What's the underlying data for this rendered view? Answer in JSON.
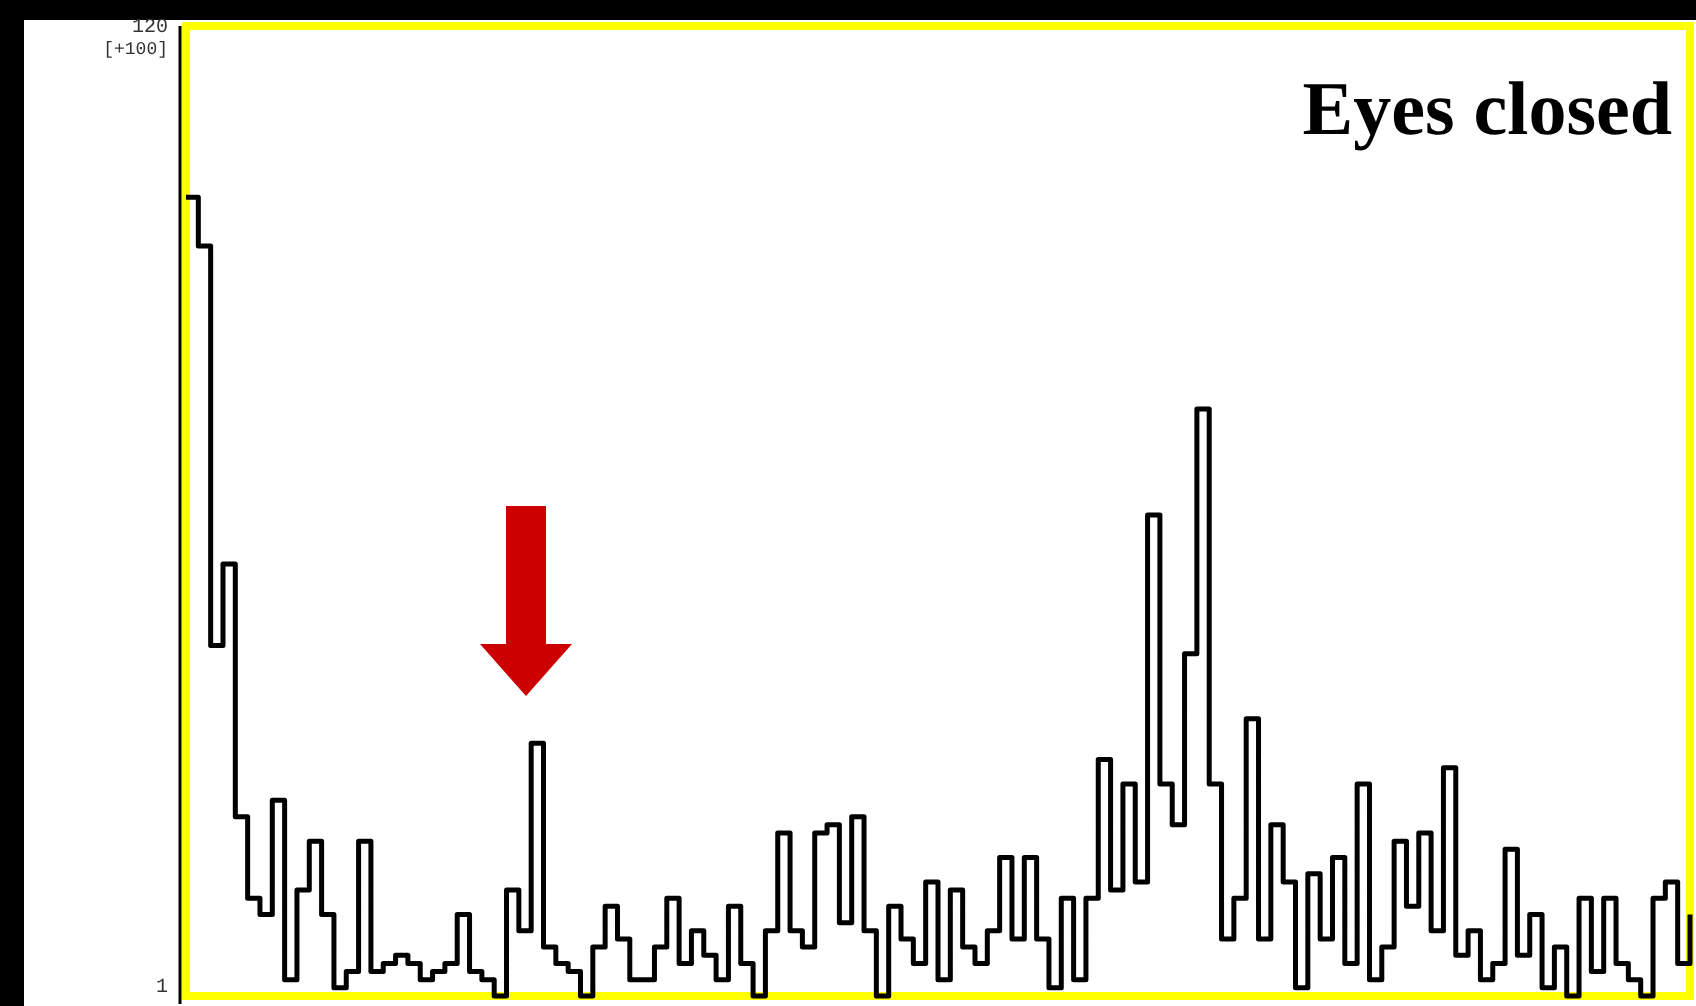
{
  "chart_data": {
    "type": "step",
    "title": "Eyes closed",
    "annotations": [
      "[+100]"
    ],
    "ylim": [
      1,
      120
    ],
    "yticks": [
      120,
      1
    ],
    "grid": false,
    "line_style": "solid",
    "categories": [
      null,
      null,
      null,
      null,
      null,
      null,
      null,
      null,
      null,
      null,
      null,
      null,
      null,
      null,
      null,
      null,
      null,
      null,
      null,
      null,
      null,
      null,
      null,
      null,
      null,
      null,
      null,
      null,
      null,
      null,
      null,
      null,
      null,
      null,
      null,
      null,
      null,
      null,
      null,
      null,
      null,
      null,
      null,
      null,
      null,
      null,
      null,
      null,
      null,
      null,
      null,
      null,
      null,
      null,
      null,
      null,
      null,
      null,
      null,
      null,
      null,
      null,
      null,
      null,
      null,
      null,
      null,
      null,
      null,
      null,
      null,
      null,
      null,
      null,
      null,
      null,
      null,
      null,
      null,
      null,
      null,
      null,
      null,
      null,
      null,
      null,
      null,
      null,
      null,
      null,
      null,
      null,
      null,
      null,
      null,
      null,
      null,
      null,
      null,
      null,
      null,
      null,
      null,
      null,
      null,
      null,
      null,
      null,
      null,
      null,
      null,
      null,
      null,
      null,
      null,
      null,
      null,
      null,
      null,
      null,
      null,
      null,
      null
    ],
    "series": [
      {
        "color": "#000000",
        "values": [
          99,
          93,
          44,
          54,
          23,
          13,
          11,
          25,
          3,
          14,
          20,
          11,
          2,
          4,
          20,
          4,
          5,
          6,
          5,
          3,
          4,
          5,
          11,
          4,
          3,
          1,
          14,
          9,
          32,
          7,
          5,
          4,
          1,
          7,
          12,
          8,
          3,
          3,
          7,
          13,
          5,
          9,
          6,
          3,
          12,
          5,
          1,
          9,
          21,
          9,
          7,
          21,
          22,
          10,
          23,
          9,
          1,
          12,
          8,
          5,
          15,
          3,
          14,
          7,
          5,
          9,
          18,
          8,
          18,
          8,
          2,
          13,
          3,
          13,
          30,
          14,
          27,
          15,
          60,
          27,
          22,
          43,
          73,
          27,
          8,
          13,
          35,
          8,
          22,
          15,
          2,
          16,
          8,
          18,
          5,
          27,
          3,
          7,
          20,
          12,
          21,
          9,
          29,
          6,
          9,
          3,
          5,
          19,
          6,
          11,
          2,
          7,
          1,
          13,
          4,
          13,
          5,
          3,
          1,
          13,
          15,
          5,
          11
        ]
      }
    ]
  }
}
